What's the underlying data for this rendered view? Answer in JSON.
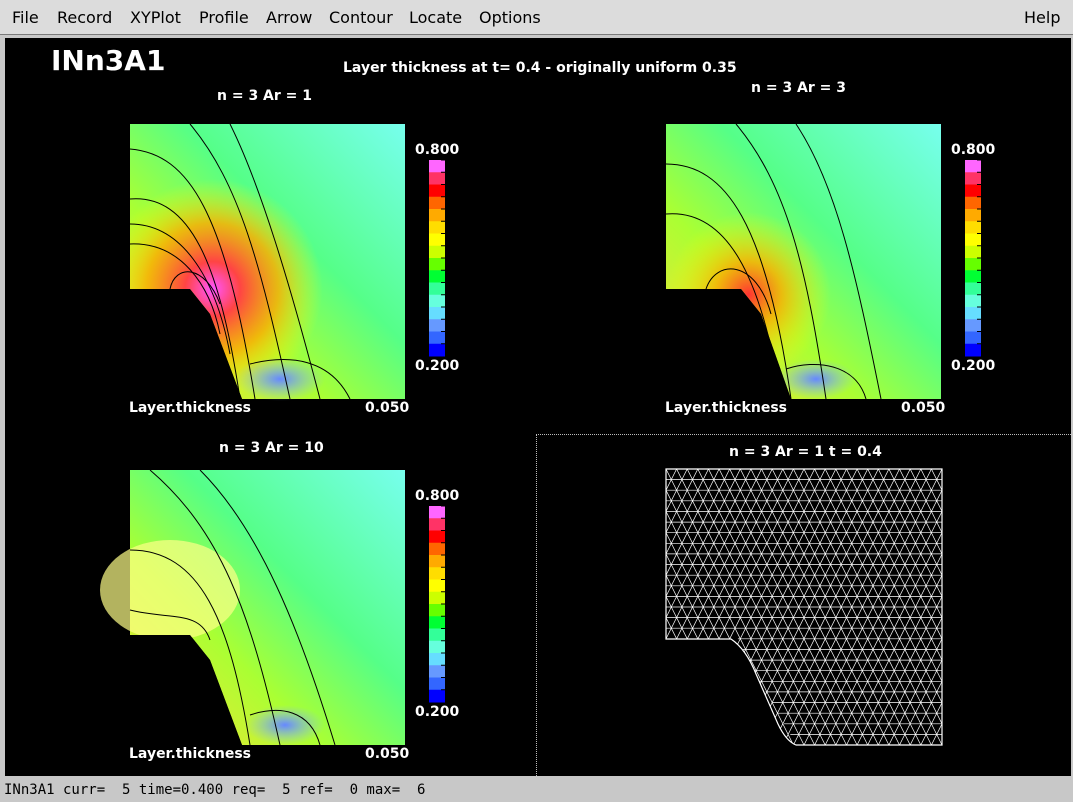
{
  "menu": {
    "file": "File",
    "record": "Record",
    "xyplot": "XYPlot",
    "profile": "Profile",
    "arrow": "Arrow",
    "contour": "Contour",
    "locate": "Locate",
    "options": "Options",
    "help": "Help"
  },
  "figure": {
    "run_name": "INn3A1",
    "title": "Layer thickness at t= 0.4 - originally uniform 0.35"
  },
  "panels": [
    {
      "title": "n = 3 Ar = 1",
      "field": "Layer.thickness",
      "interval": "0.050",
      "cmax": "0.800",
      "cmin": "0.200"
    },
    {
      "title": "n = 3 Ar = 3",
      "field": "Layer.thickness",
      "interval": "0.050",
      "cmax": "0.800",
      "cmin": "0.200"
    },
    {
      "title": "n = 3 Ar = 10",
      "field": "Layer.thickness",
      "interval": "0.050",
      "cmax": "0.800",
      "cmin": "0.200"
    }
  ],
  "mesh_panel": {
    "title": "n = 3 Ar = 1 t = 0.4"
  },
  "colors": {
    "colorbar": [
      "#ff66ff",
      "#ff3366",
      "#ff0000",
      "#ff6600",
      "#ffaa00",
      "#ffdd00",
      "#ffff00",
      "#ccff00",
      "#66ff00",
      "#00ff33",
      "#33ff99",
      "#66ffdd",
      "#66ddff",
      "#6699ff",
      "#3366ff",
      "#0000ff"
    ],
    "background": "#000000",
    "mesh_line": "#ffffff"
  },
  "status": {
    "text": "INn3A1 curr=  5 time=0.400 req=  5 ref=  0 max=  6"
  }
}
